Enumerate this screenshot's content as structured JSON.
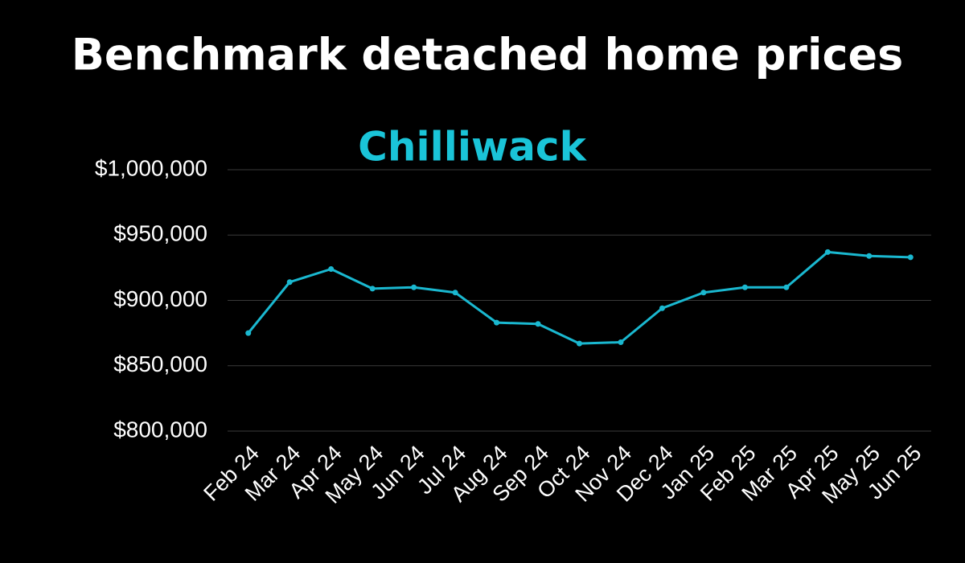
{
  "chart_data": {
    "type": "line",
    "title": "Benchmark detached home prices",
    "subtitle": "Chilliwack",
    "subtitle_color": "#1ac4d8",
    "categories": [
      "Feb 24",
      "Mar 24",
      "Apr 24",
      "May 24",
      "Jun 24",
      "Jul 24",
      "Aug 24",
      "Sep 24",
      "Oct 24",
      "Nov 24",
      "Dec 24",
      "Jan 25",
      "Feb 25",
      "Mar 25",
      "Apr 25",
      "May 25",
      "Jun 25"
    ],
    "values": [
      875000,
      914000,
      924000,
      909000,
      910000,
      906000,
      883000,
      882000,
      867000,
      868000,
      894000,
      906000,
      910000,
      910000,
      937000,
      934000,
      933000
    ],
    "color": "#1ab8d0",
    "ylim": [
      800000,
      1000000
    ],
    "yticks": [
      {
        "value": 800000,
        "label": "$800,000"
      },
      {
        "value": 850000,
        "label": "$850,000"
      },
      {
        "value": 900000,
        "label": "$900,000"
      },
      {
        "value": 950000,
        "label": "$950,000"
      },
      {
        "value": 1000000,
        "label": "$1,000,000"
      }
    ],
    "grid": true
  }
}
